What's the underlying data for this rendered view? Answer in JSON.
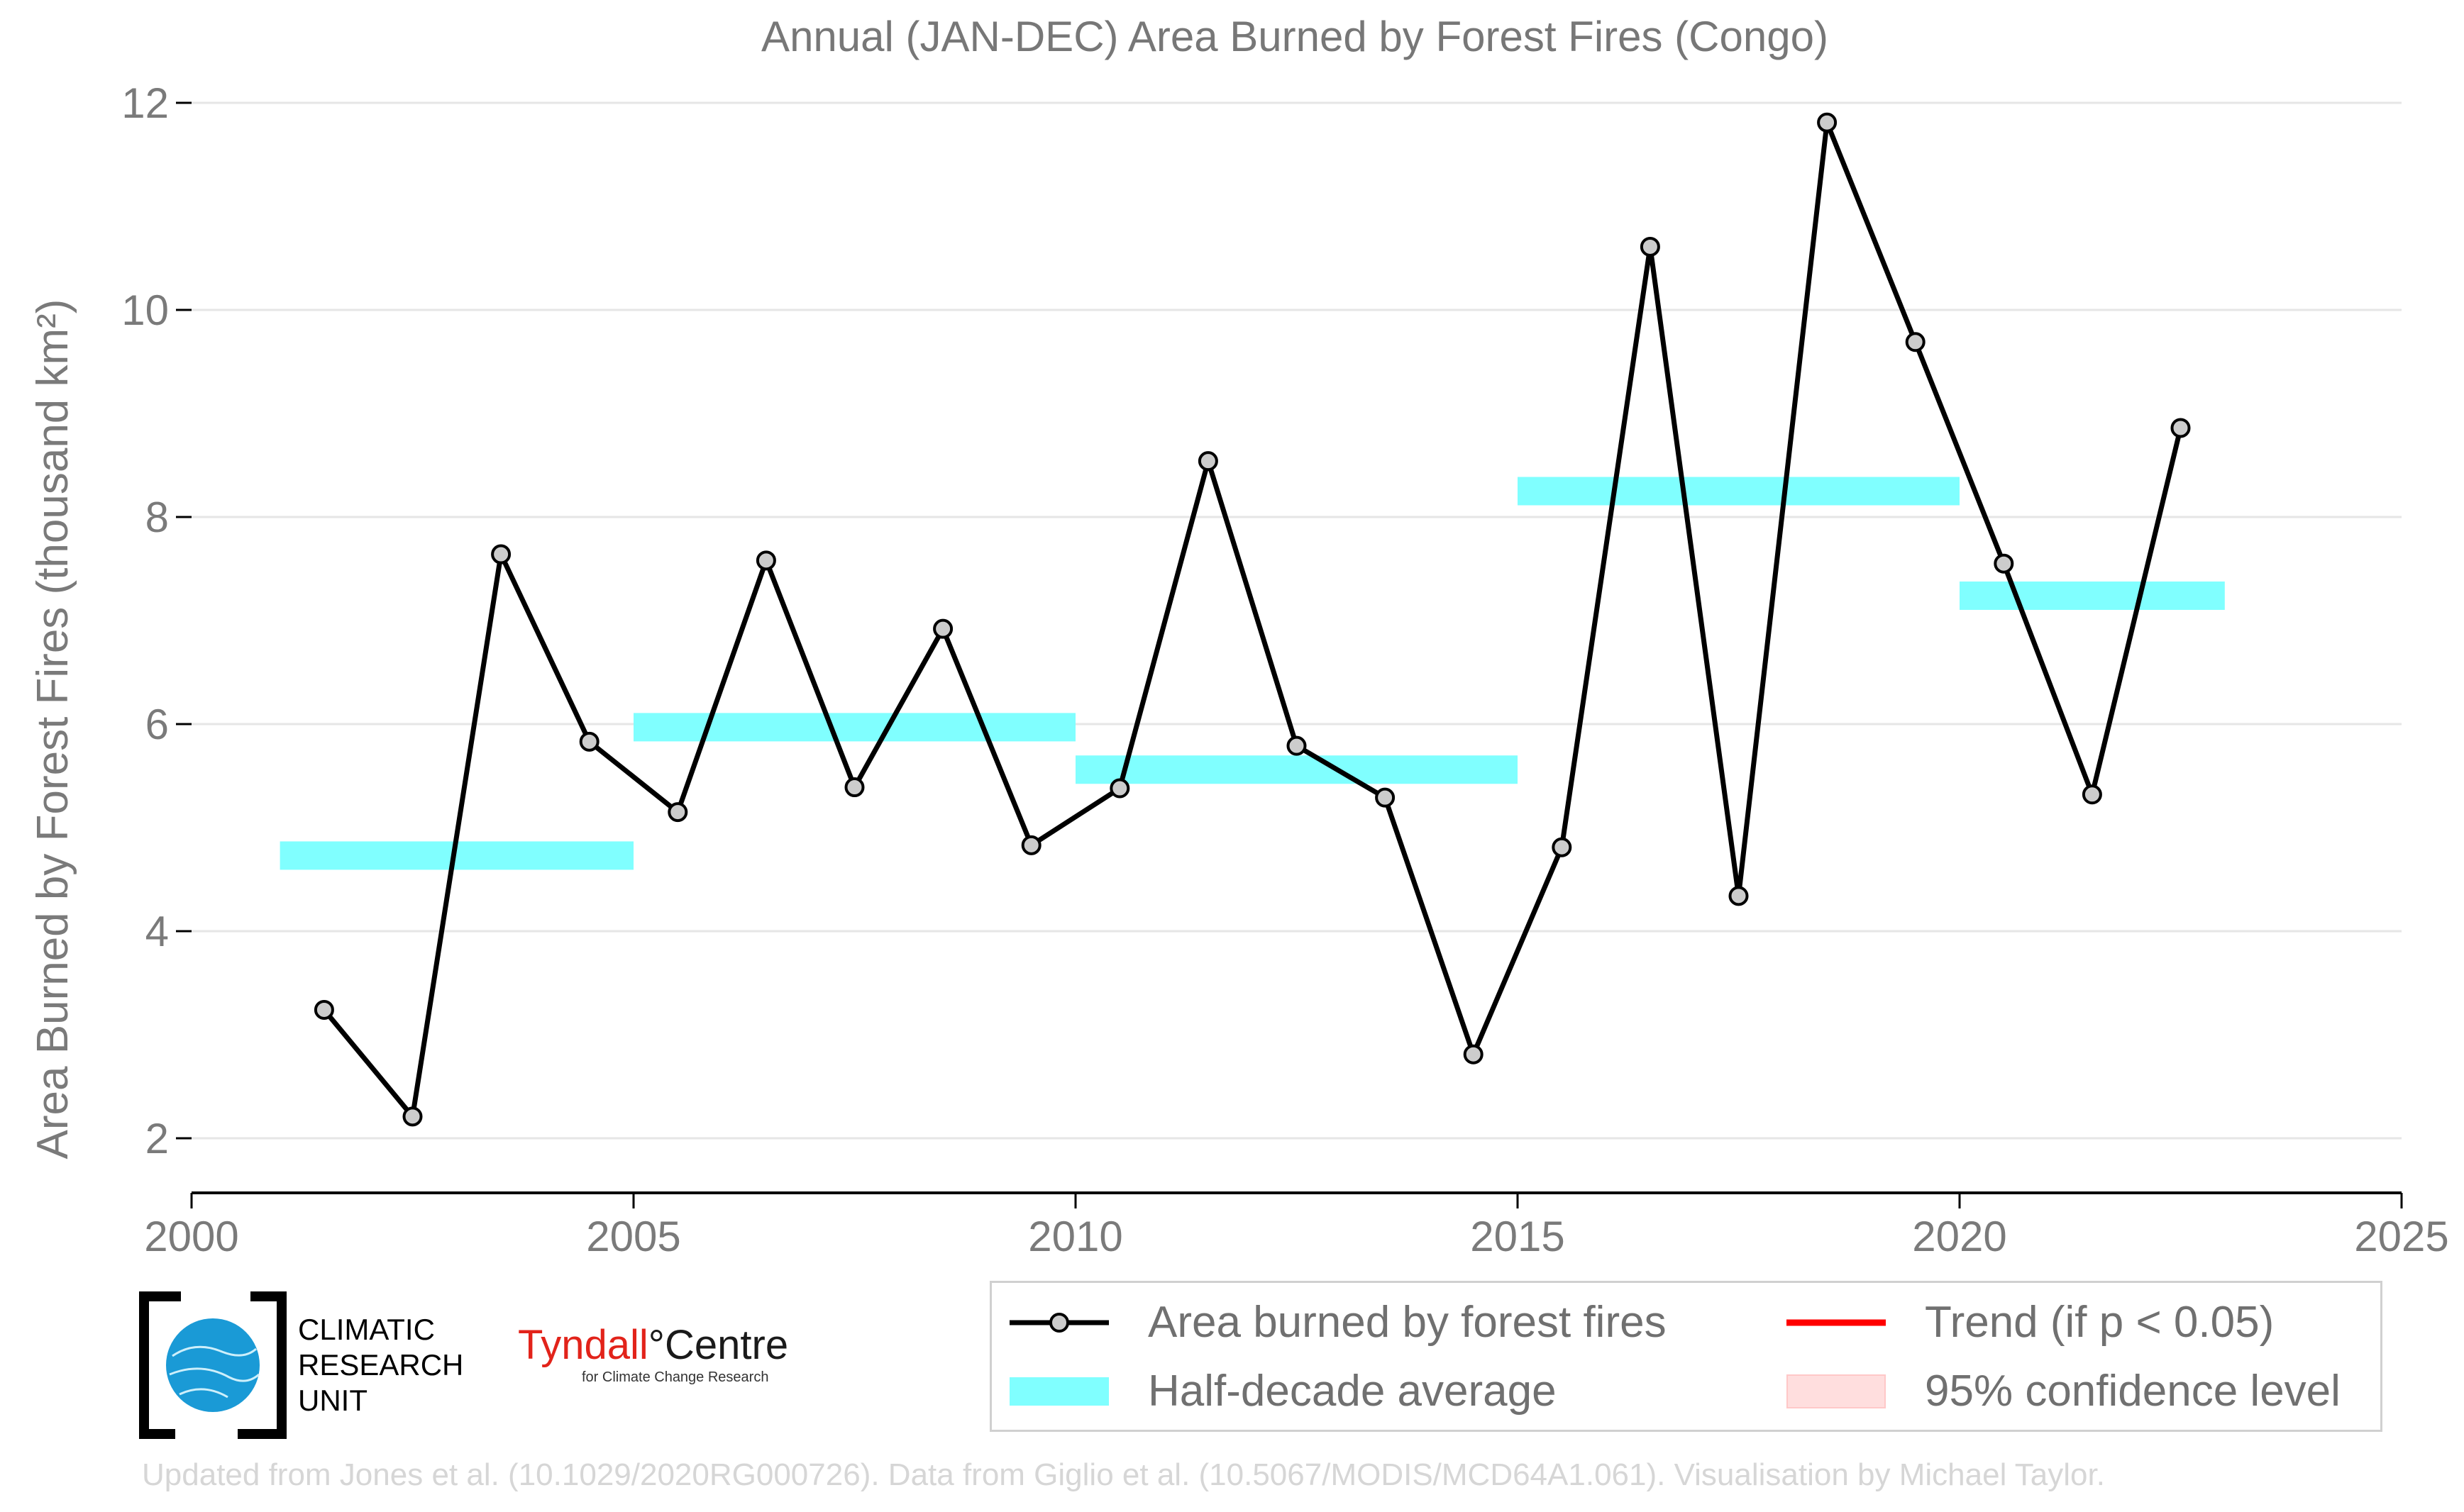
{
  "chart_data": {
    "type": "line",
    "title": "Annual (JAN-DEC) Area Burned by Forest Fires (Congo)",
    "ylabel": "Area Burned by Forest Fires (thousand km²)",
    "xlabel": "",
    "xlim": [
      2000,
      2025
    ],
    "ylim": [
      1.5,
      12.2
    ],
    "xticks": [
      2000,
      2005,
      2010,
      2015,
      2020,
      2025
    ],
    "yticks": [
      2,
      4,
      6,
      8,
      10,
      12
    ],
    "grid": "horizontal",
    "series": [
      {
        "name": "Area burned by forest fires",
        "color": "#000000",
        "marker_fill": "#cccccc",
        "x": [
          2001.5,
          2002.5,
          2003.5,
          2004.5,
          2005.5,
          2006.5,
          2007.5,
          2008.5,
          2009.5,
          2010.5,
          2011.5,
          2012.5,
          2013.5,
          2014.5,
          2015.5,
          2016.5,
          2017.5,
          2018.5,
          2019.5,
          2020.5,
          2021.5,
          2022.5
        ],
        "values": [
          3.24,
          2.21,
          7.64,
          5.83,
          5.15,
          7.58,
          5.39,
          6.92,
          4.83,
          5.38,
          8.54,
          5.79,
          5.29,
          2.81,
          4.81,
          10.61,
          4.34,
          11.81,
          9.69,
          7.55,
          5.32,
          8.86
        ]
      }
    ],
    "half_decade_average": {
      "name": "Half-decade average",
      "color": "#80ffff",
      "segments": [
        {
          "x0": 2001,
          "x1": 2005,
          "y": 4.73
        },
        {
          "x0": 2005,
          "x1": 2010,
          "y": 5.97
        },
        {
          "x0": 2010,
          "x1": 2015,
          "y": 5.56
        },
        {
          "x0": 2015,
          "x1": 2020,
          "y": 8.25
        },
        {
          "x0": 2020,
          "x1": 2023,
          "y": 7.24
        }
      ]
    },
    "legend": {
      "placement": "bottom-right",
      "entries": [
        {
          "label": "Area burned by forest fires",
          "kind": "line-marker",
          "color": "#000000"
        },
        {
          "label": "Trend (if p < 0.05)",
          "kind": "line",
          "color": "#ff0000"
        },
        {
          "label": "Half-decade average",
          "kind": "band",
          "color": "#80ffff"
        },
        {
          "label": "95% confidence level",
          "kind": "patch",
          "color": "#ffdede"
        }
      ]
    }
  },
  "logos": {
    "cru_lines": [
      "CLIMATIC",
      "RESEARCH",
      "UNIT"
    ],
    "tyndall_red": "Tyndall",
    "tyndall_degree": "°",
    "tyndall_dark": "Centre",
    "tyndall_sub": "for Climate Change Research"
  },
  "credit": "Updated from Jones et al. (10.1029/2020RG000726). Data from Giglio et al. (10.5067/MODIS/MCD64A1.061). Visualisation by Michael Taylor."
}
